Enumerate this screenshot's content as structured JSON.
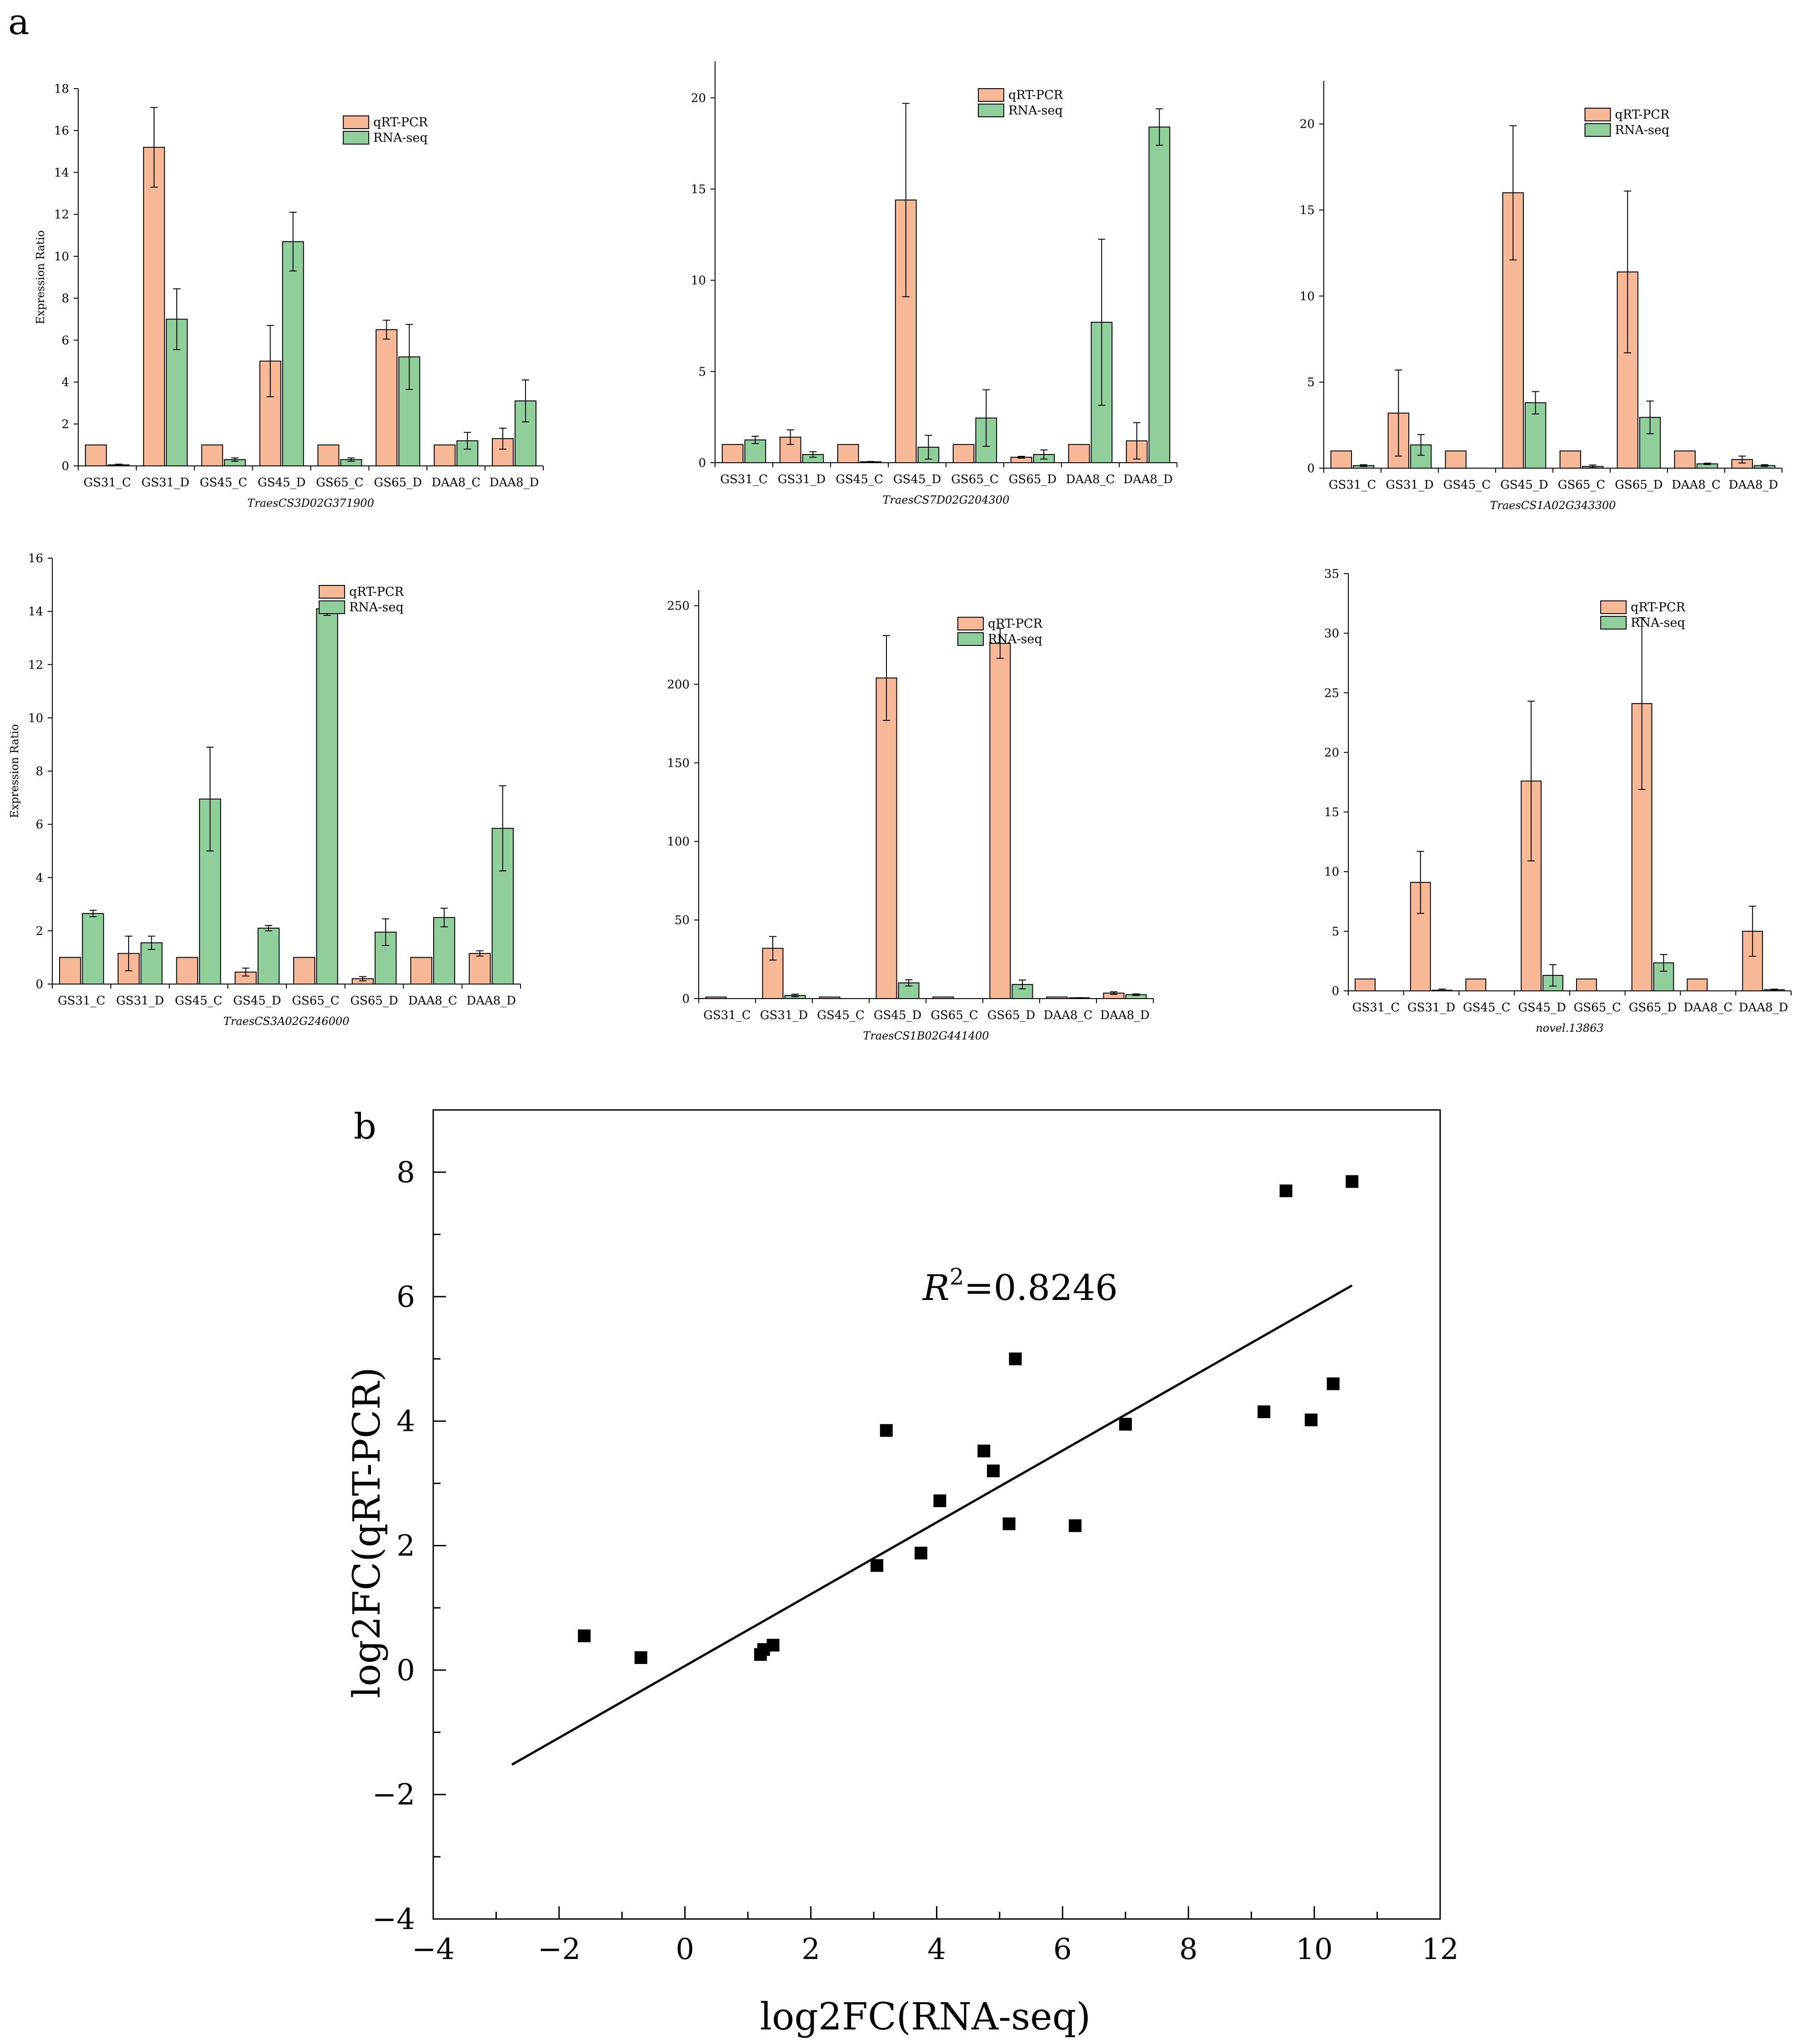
{
  "figure": {
    "panel_a_label": "a",
    "panel_b_label": "b",
    "colors": {
      "qrt": "#f7b995",
      "rna": "#8ecf9b",
      "stroke": "#000000",
      "point": "#000000"
    }
  },
  "chart_data": [
    {
      "type": "bar",
      "panel": "a1",
      "gene": "TraesCS3D02G371900",
      "ylabel": "Expression Ratio",
      "ylim": [
        0,
        18
      ],
      "yticks": [
        0,
        2,
        4,
        6,
        8,
        10,
        12,
        14,
        16,
        18
      ],
      "categories": [
        "GS31_C",
        "GS31_D",
        "GS45_C",
        "GS45_D",
        "GS65_C",
        "GS65_D",
        "DAA8_C",
        "DAA8_D"
      ],
      "series": [
        {
          "name": "qRT-PCR",
          "values": [
            1.0,
            15.2,
            1.0,
            5.0,
            1.0,
            6.5,
            1.0,
            1.3
          ],
          "errors": [
            0,
            1.9,
            0,
            1.7,
            0,
            0.45,
            0,
            0.5
          ]
        },
        {
          "name": "RNA-seq",
          "values": [
            0.05,
            7.0,
            0.3,
            10.7,
            0.3,
            5.2,
            1.2,
            3.1
          ],
          "errors": [
            0.03,
            1.45,
            0.08,
            1.4,
            0.08,
            1.55,
            0.4,
            1.0
          ]
        }
      ]
    },
    {
      "type": "bar",
      "panel": "a2",
      "gene": "TraesCS7D02G204300",
      "ylabel": "",
      "ylim": [
        0,
        22
      ],
      "yticks": [
        0,
        5,
        10,
        15,
        20
      ],
      "categories": [
        "GS31_C",
        "GS31_D",
        "GS45_C",
        "GS45_D",
        "GS65_C",
        "GS65_D",
        "DAA8_C",
        "DAA8_D"
      ],
      "series": [
        {
          "name": "qRT-PCR",
          "values": [
            1.0,
            1.4,
            1.0,
            14.4,
            1.0,
            0.3,
            1.0,
            1.2
          ],
          "errors": [
            0,
            0.4,
            0,
            5.3,
            0,
            0.05,
            0,
            1.0
          ]
        },
        {
          "name": "RNA-seq",
          "values": [
            1.25,
            0.45,
            0.05,
            0.85,
            2.45,
            0.45,
            7.7,
            18.4
          ],
          "errors": [
            0.2,
            0.15,
            0.02,
            0.65,
            1.55,
            0.25,
            4.55,
            1.0
          ]
        }
      ]
    },
    {
      "type": "bar",
      "panel": "a3",
      "gene": "TraesCS1A02G343300",
      "ylabel": "",
      "ylim": [
        0,
        22.5
      ],
      "yticks": [
        0,
        5,
        10,
        15,
        20
      ],
      "categories": [
        "GS31_C",
        "GS31_D",
        "GS45_C",
        "GS45_D",
        "GS65_C",
        "GS65_D",
        "DAA8_C",
        "DAA8_D"
      ],
      "series": [
        {
          "name": "qRT-PCR",
          "values": [
            1.0,
            3.2,
            1.0,
            16.0,
            1.0,
            11.4,
            1.0,
            0.5
          ],
          "errors": [
            0,
            2.5,
            0,
            3.9,
            0,
            4.7,
            0,
            0.2
          ]
        },
        {
          "name": "RNA-seq",
          "values": [
            0.15,
            1.35,
            0.0,
            3.8,
            0.1,
            2.95,
            0.25,
            0.15
          ],
          "errors": [
            0.05,
            0.6,
            0,
            0.65,
            0.08,
            0.95,
            0.04,
            0.05
          ]
        }
      ]
    },
    {
      "type": "bar",
      "panel": "a4",
      "gene": "TraesCS3A02G246000",
      "ylabel": "Expression Ratio",
      "ylim": [
        0,
        16
      ],
      "yticks": [
        0,
        2,
        4,
        6,
        8,
        10,
        12,
        14,
        16
      ],
      "categories": [
        "GS31_C",
        "GS31_D",
        "GS45_C",
        "GS45_D",
        "GS65_C",
        "GS65_D",
        "DAA8_C",
        "DAA8_D"
      ],
      "series": [
        {
          "name": "qRT-PCR",
          "values": [
            1.0,
            1.15,
            1.0,
            0.45,
            1.0,
            0.2,
            1.0,
            1.15
          ],
          "errors": [
            0,
            0.65,
            0,
            0.15,
            0,
            0.08,
            0,
            0.1
          ]
        },
        {
          "name": "RNA-seq",
          "values": [
            2.65,
            1.55,
            6.95,
            2.1,
            14.1,
            1.95,
            2.5,
            5.85
          ],
          "errors": [
            0.12,
            0.25,
            1.95,
            0.1,
            0.25,
            0.5,
            0.35,
            1.6
          ]
        }
      ]
    },
    {
      "type": "bar",
      "panel": "a5",
      "gene": "TraesCS1B02G441400",
      "ylabel": "",
      "ylim": [
        0,
        260
      ],
      "yticks": [
        0,
        50,
        100,
        150,
        200,
        250
      ],
      "categories": [
        "GS31_C",
        "GS31_D",
        "GS45_C",
        "GS45_D",
        "GS65_C",
        "GS65_D",
        "DAA8_C",
        "DAA8_D"
      ],
      "series": [
        {
          "name": "qRT-PCR",
          "values": [
            1.0,
            32.0,
            1.0,
            204.0,
            1.0,
            226.0,
            1.0,
            3.5
          ],
          "errors": [
            0,
            7.5,
            0,
            27.0,
            0,
            9.5,
            0,
            0.8
          ]
        },
        {
          "name": "RNA-seq",
          "values": [
            0.0,
            2.0,
            0.0,
            10.0,
            0.0,
            9.0,
            0.5,
            2.5
          ],
          "errors": [
            0,
            0.8,
            0,
            2.0,
            0,
            2.8,
            0.1,
            0.5
          ]
        }
      ]
    },
    {
      "type": "bar",
      "panel": "a6",
      "gene": "novel.13863",
      "ylabel": "",
      "ylim": [
        0,
        35
      ],
      "yticks": [
        0,
        5,
        10,
        15,
        20,
        25,
        30,
        35
      ],
      "categories": [
        "GS31_C",
        "GS31_D",
        "GS45_C",
        "GS45_D",
        "GS65_C",
        "GS65_D",
        "DAA8_C",
        "DAA8_D"
      ],
      "series": [
        {
          "name": "qRT-PCR",
          "values": [
            1.0,
            9.1,
            1.0,
            17.6,
            1.0,
            24.1,
            1.0,
            5.0
          ],
          "errors": [
            0,
            2.6,
            0,
            6.7,
            0,
            7.2,
            0,
            2.1
          ]
        },
        {
          "name": "RNA-seq",
          "values": [
            0.0,
            0.05,
            0.0,
            1.3,
            0.0,
            2.35,
            0.0,
            0.1
          ],
          "errors": [
            0,
            0.1,
            0,
            0.9,
            0,
            0.7,
            0,
            0.05
          ]
        }
      ]
    },
    {
      "type": "scatter",
      "panel": "b",
      "xlabel": "log2FC(RNA-seq)",
      "ylabel": "log2FC(qRT-PCR)",
      "xlim": [
        -4,
        12
      ],
      "ylim": [
        -4,
        9
      ],
      "xticks": [
        -4,
        -2,
        0,
        2,
        4,
        6,
        8,
        10,
        12
      ],
      "yticks": [
        -4,
        -2,
        0,
        2,
        4,
        6,
        8
      ],
      "annotation": {
        "r2_symbol": "R",
        "r2_sup": "2",
        "r2_value": "=0.8246"
      },
      "fit_line": {
        "x": [
          -2.75,
          10.6
        ],
        "y": [
          -1.52,
          6.18
        ]
      },
      "points": [
        [
          -1.6,
          0.55
        ],
        [
          -0.7,
          0.2
        ],
        [
          1.2,
          0.25
        ],
        [
          1.25,
          0.33
        ],
        [
          1.4,
          0.4
        ],
        [
          3.05,
          1.68
        ],
        [
          3.75,
          1.88
        ],
        [
          3.2,
          3.85
        ],
        [
          4.05,
          2.72
        ],
        [
          4.75,
          3.52
        ],
        [
          4.9,
          3.2
        ],
        [
          5.15,
          2.35
        ],
        [
          5.25,
          5.0
        ],
        [
          6.2,
          2.32
        ],
        [
          7.0,
          3.95
        ],
        [
          9.2,
          4.15
        ],
        [
          9.95,
          4.02
        ],
        [
          10.3,
          4.6
        ],
        [
          9.55,
          7.7
        ],
        [
          10.6,
          7.85
        ]
      ]
    }
  ]
}
